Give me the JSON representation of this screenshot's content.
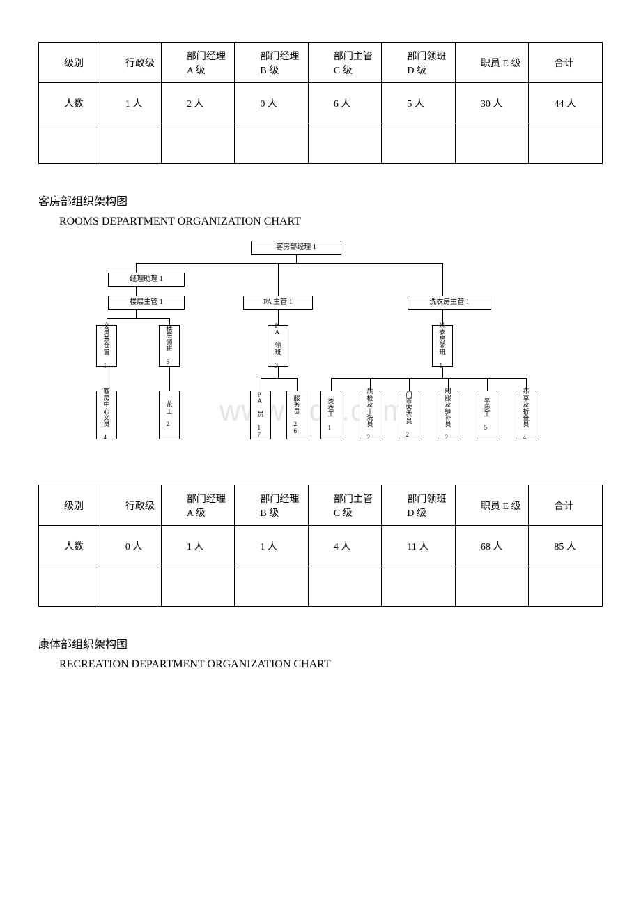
{
  "table1": {
    "columns": [
      "级别",
      "行政级",
      "部门经理 A 级",
      "部门经理 B 级",
      "部门主管 C 级",
      "部门领班 D 级",
      "职员 E 级",
      "合计"
    ],
    "row_label": "人数",
    "values": [
      "1 人",
      "2 人",
      "0 人",
      "6 人",
      "5 人",
      "30 人",
      "44 人"
    ]
  },
  "section2": {
    "title_cn": "客房部组织架构图",
    "title_en": "ROOMS DEPARTMENT ORGANIZATION CHART"
  },
  "org": {
    "root": "客房部经理 1",
    "assistant": "经理助理 1",
    "sup1": "楼层主管 1",
    "sup2": "PA 主管 1",
    "sup3": "洗衣房主管 1",
    "lead1": "文员兼仓管 1",
    "lead2": "楼层领班 6",
    "lead3": "PA 领班 3",
    "lead4": "洗衣房领班 1",
    "leaf1": "客房中心文员 4",
    "leaf2": "花工 2",
    "leaf3": "PA 员 17",
    "leaf4": "服务员 26",
    "leaf5": "烫衣工 1",
    "leaf6": "质检及干洗员 2",
    "leaf7": "门市客衣员 2",
    "leaf8": "制服及缝补员 2",
    "leaf9": "平烫工 5",
    "leaf10": "布草及折叠员 4"
  },
  "watermark": "www.bdx.com",
  "table2": {
    "columns": [
      "级别",
      "行政级",
      "部门经理 A 级",
      "部门经理 B 级",
      "部门主管 C 级",
      "部门领班 D 级",
      "职员 E 级",
      "合计"
    ],
    "row_label": "人数",
    "values": [
      "0 人",
      "1 人",
      "1 人",
      "4 人",
      "11 人",
      "68 人",
      "85 人"
    ]
  },
  "section3": {
    "title_cn": "康体部组织架构图",
    "title_en": "RECREATION DEPARTMENT ORGANIZATION CHART"
  }
}
